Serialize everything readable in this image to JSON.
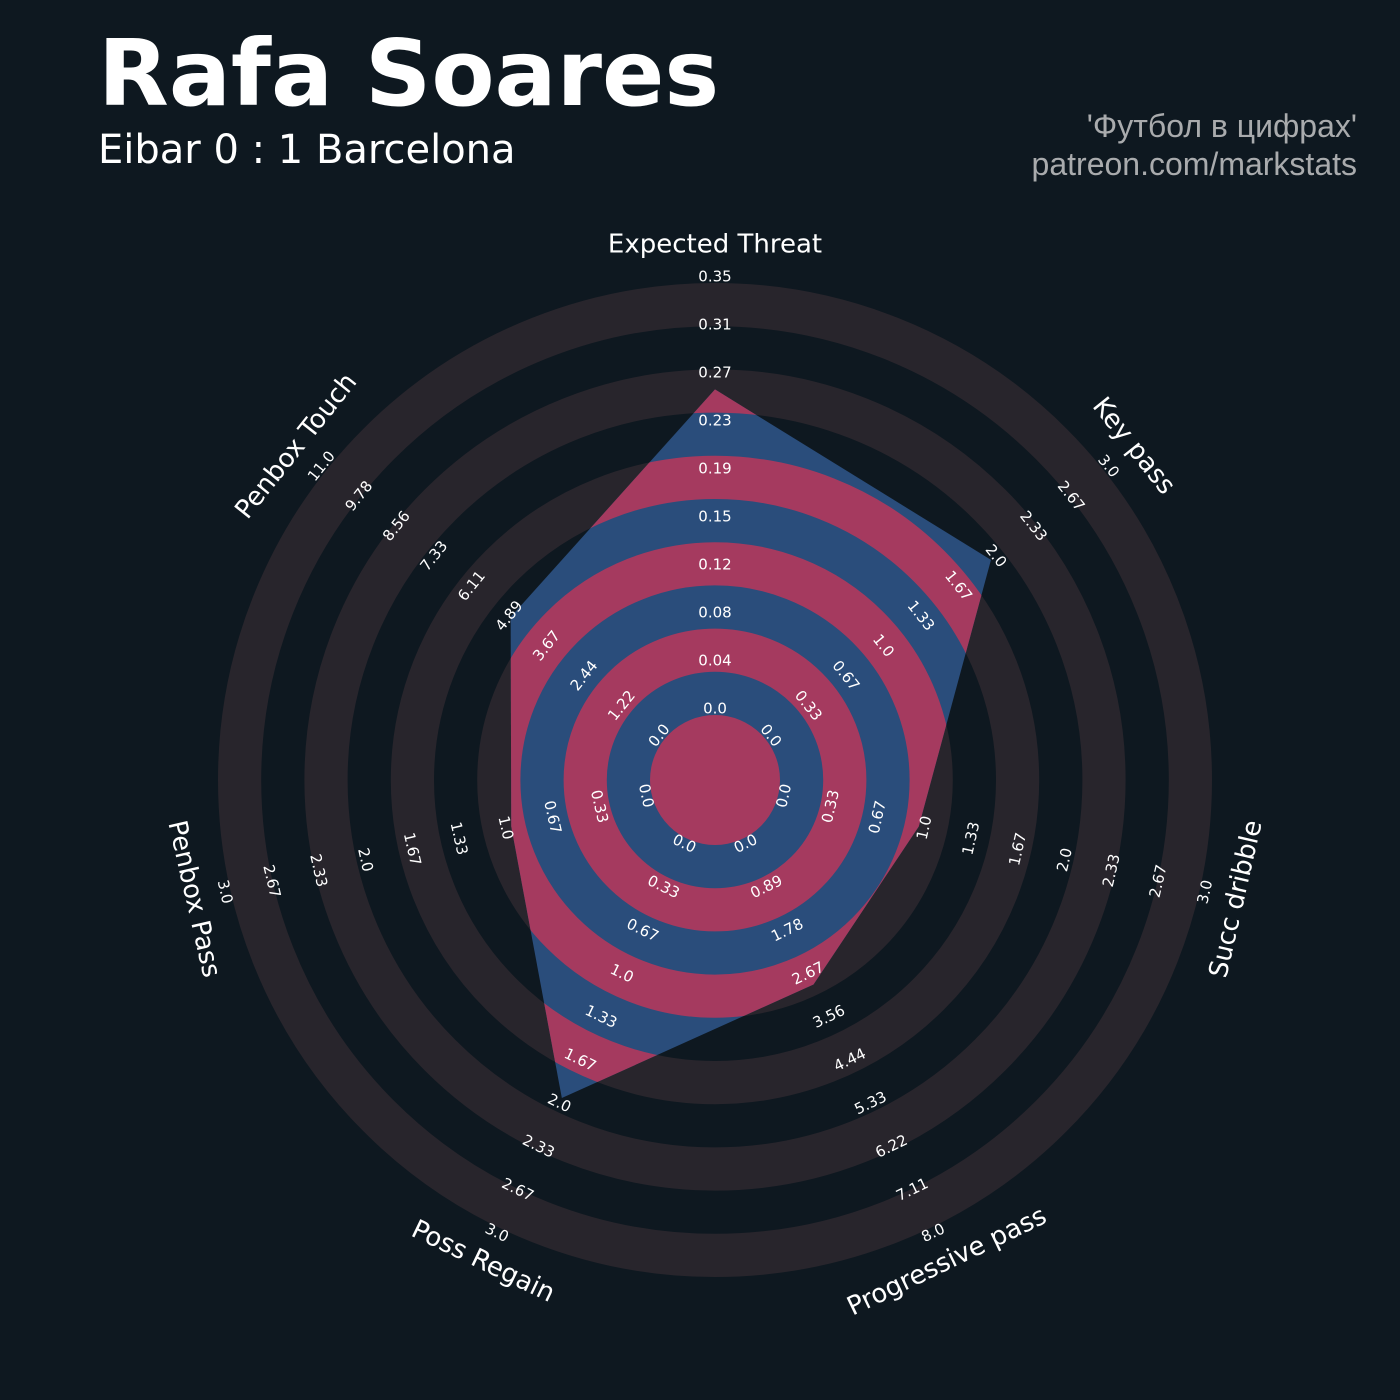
{
  "chart_data": {
    "type": "radar",
    "title": "Rafa Soares",
    "subtitle": "Eibar 0 : 1 Barcelona",
    "credits": [
      "'Футбол в цифрах'",
      "patreon.com/markstats"
    ],
    "categories": [
      "Expected Threat",
      "Key pass",
      "Succ dribble",
      "Progressive pass",
      "Poss Regain",
      "Penbox Pass",
      "Penbox Touch"
    ],
    "series": [
      {
        "color": "#2a4d7b",
        "values": [
          0.26,
          2.0,
          1.0,
          3.0,
          2.0,
          1.0,
          5.0
        ]
      }
    ],
    "highlight_color": "#a53a5f",
    "ring_color": "#28252c",
    "background": "#0e1820",
    "axes": [
      {
        "lim": [
          0,
          0.345
        ],
        "ticks": [
          {
            "value": 0,
            "label": "0.0"
          },
          {
            "value": 0.0383,
            "label": "0.04"
          },
          {
            "value": 0.0767,
            "label": "0.08"
          },
          {
            "value": 0.115,
            "label": "0.12"
          },
          {
            "value": 0.1533,
            "label": "0.15"
          },
          {
            "value": 0.1917,
            "label": "0.19"
          },
          {
            "value": 0.23,
            "label": "0.23"
          },
          {
            "value": 0.2683,
            "label": "0.27"
          },
          {
            "value": 0.3067,
            "label": "0.31"
          },
          {
            "value": 0.345,
            "label": "0.35"
          }
        ]
      },
      {
        "lim": [
          0,
          3
        ],
        "ticks": [
          {
            "value": 0,
            "label": "0.0"
          },
          {
            "value": 0.3333,
            "label": "0.33"
          },
          {
            "value": 0.6667,
            "label": "0.67"
          },
          {
            "value": 1,
            "label": "1.0"
          },
          {
            "value": 1.3333,
            "label": "1.33"
          },
          {
            "value": 1.6667,
            "label": "1.67"
          },
          {
            "value": 2,
            "label": "2.0"
          },
          {
            "value": 2.3333,
            "label": "2.33"
          },
          {
            "value": 2.6667,
            "label": "2.67"
          },
          {
            "value": 3,
            "label": "3.0"
          }
        ]
      },
      {
        "lim": [
          0,
          3
        ],
        "ticks": [
          {
            "value": 0,
            "label": "0.0"
          },
          {
            "value": 0.3333,
            "label": "0.33"
          },
          {
            "value": 0.6667,
            "label": "0.67"
          },
          {
            "value": 1,
            "label": "1.0"
          },
          {
            "value": 1.3333,
            "label": "1.33"
          },
          {
            "value": 1.6667,
            "label": "1.67"
          },
          {
            "value": 2,
            "label": "2.0"
          },
          {
            "value": 2.3333,
            "label": "2.33"
          },
          {
            "value": 2.6667,
            "label": "2.67"
          },
          {
            "value": 3,
            "label": "3.0"
          }
        ]
      },
      {
        "lim": [
          0,
          8
        ],
        "ticks": [
          {
            "value": 0,
            "label": "0.0"
          },
          {
            "value": 0.8889,
            "label": "0.89"
          },
          {
            "value": 1.7778,
            "label": "1.78"
          },
          {
            "value": 2.6667,
            "label": "2.67"
          },
          {
            "value": 3.5556,
            "label": "3.56"
          },
          {
            "value": 4.4444,
            "label": "4.44"
          },
          {
            "value": 5.3333,
            "label": "5.33"
          },
          {
            "value": 6.2222,
            "label": "6.22"
          },
          {
            "value": 7.1111,
            "label": "7.11"
          },
          {
            "value": 8,
            "label": "8.0"
          }
        ]
      },
      {
        "lim": [
          0,
          3
        ],
        "ticks": [
          {
            "value": 0,
            "label": "0.0"
          },
          {
            "value": 0.3333,
            "label": "0.33"
          },
          {
            "value": 0.6667,
            "label": "0.67"
          },
          {
            "value": 1,
            "label": "1.0"
          },
          {
            "value": 1.3333,
            "label": "1.33"
          },
          {
            "value": 1.6667,
            "label": "1.67"
          },
          {
            "value": 2,
            "label": "2.0"
          },
          {
            "value": 2.3333,
            "label": "2.33"
          },
          {
            "value": 2.6667,
            "label": "2.67"
          },
          {
            "value": 3,
            "label": "3.0"
          }
        ]
      },
      {
        "lim": [
          0,
          3
        ],
        "ticks": [
          {
            "value": 0,
            "label": "0.0"
          },
          {
            "value": 0.3333,
            "label": "0.33"
          },
          {
            "value": 0.6667,
            "label": "0.67"
          },
          {
            "value": 1,
            "label": "1.0"
          },
          {
            "value": 1.3333,
            "label": "1.33"
          },
          {
            "value": 1.6667,
            "label": "1.67"
          },
          {
            "value": 2,
            "label": "2.0"
          },
          {
            "value": 2.3333,
            "label": "2.33"
          },
          {
            "value": 2.6667,
            "label": "2.67"
          },
          {
            "value": 3,
            "label": "3.0"
          }
        ]
      },
      {
        "lim": [
          0,
          11
        ],
        "ticks": [
          {
            "value": 0,
            "label": "0.0"
          },
          {
            "value": 1.2222,
            "label": "1.22"
          },
          {
            "value": 2.4444,
            "label": "2.44"
          },
          {
            "value": 3.6667,
            "label": "3.67"
          },
          {
            "value": 4.8889,
            "label": "4.89"
          },
          {
            "value": 6.1111,
            "label": "6.11"
          },
          {
            "value": 7.3333,
            "label": "7.33"
          },
          {
            "value": 8.5556,
            "label": "8.56"
          },
          {
            "value": 9.7778,
            "label": "9.78"
          },
          {
            "value": 11,
            "label": "11.0"
          }
        ]
      }
    ]
  }
}
